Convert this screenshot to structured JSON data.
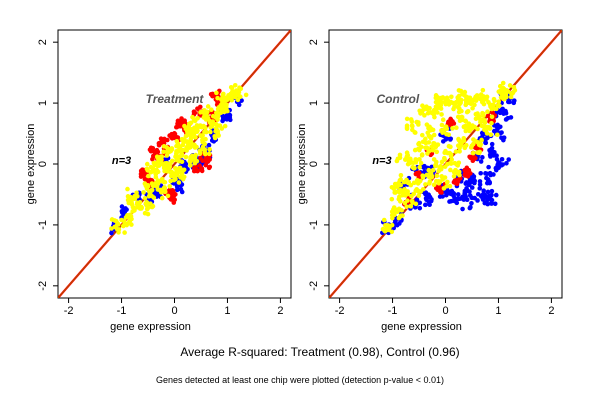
{
  "chart_data": [
    {
      "type": "scatter",
      "panel_label": "Treatment",
      "n_label": "n=3",
      "xlabel": "gene expression",
      "ylabel": "gene expression",
      "xlim": [
        -2.2,
        2.2
      ],
      "ylim": [
        -2.2,
        2.2
      ],
      "xticks": [
        -2,
        -1,
        0,
        1,
        2
      ],
      "yticks": [
        -2,
        -1,
        0,
        1,
        2
      ],
      "reference_line": {
        "slope": 1,
        "intercept": 0,
        "colors": [
          "#ff0000",
          "#996600"
        ]
      },
      "series": [
        {
          "color": "#0000ff",
          "spread": 0.1,
          "points": [
            [
              -1.15,
              -1.05
            ],
            [
              -0.95,
              -0.8
            ],
            [
              -0.7,
              -0.55
            ],
            [
              -0.5,
              -0.6
            ],
            [
              -0.3,
              -0.45
            ],
            [
              0.0,
              -0.25
            ],
            [
              0.2,
              -0.05
            ],
            [
              0.35,
              0.05
            ],
            [
              0.55,
              0.25
            ],
            [
              0.75,
              0.5
            ],
            [
              0.95,
              0.8
            ],
            [
              1.2,
              1.05
            ],
            [
              0.6,
              0.15
            ],
            [
              -0.2,
              0.05
            ],
            [
              0.1,
              -0.35
            ],
            [
              0.5,
              0.0
            ]
          ]
        },
        {
          "color": "#ff0000",
          "spread": 0.1,
          "points": [
            [
              -0.5,
              -0.3
            ],
            [
              -0.3,
              0.1
            ],
            [
              -0.2,
              0.35
            ],
            [
              0.0,
              0.45
            ],
            [
              0.2,
              0.6
            ],
            [
              0.45,
              0.85
            ],
            [
              0.8,
              1.1
            ],
            [
              0.9,
              0.95
            ],
            [
              0.45,
              -0.1
            ],
            [
              0.6,
              0.05
            ],
            [
              -0.1,
              -0.45
            ],
            [
              -0.05,
              -0.55
            ],
            [
              -0.4,
              0.2
            ],
            [
              0.1,
              0.65
            ],
            [
              0.7,
              0.75
            ],
            [
              -0.6,
              -0.15
            ]
          ]
        },
        {
          "color": "#ffff00",
          "spread": 0.14,
          "points": [
            [
              -1.1,
              -1.05
            ],
            [
              -0.9,
              -0.9
            ],
            [
              -0.7,
              -0.7
            ],
            [
              -0.5,
              -0.45
            ],
            [
              -0.3,
              -0.3
            ],
            [
              -0.1,
              -0.05
            ],
            [
              0.1,
              0.1
            ],
            [
              0.3,
              0.3
            ],
            [
              0.5,
              0.5
            ],
            [
              0.7,
              0.7
            ],
            [
              0.9,
              0.9
            ],
            [
              1.1,
              1.1
            ],
            [
              1.2,
              1.2
            ],
            [
              -0.4,
              -0.1
            ],
            [
              -0.2,
              0.15
            ],
            [
              0.0,
              0.25
            ],
            [
              0.2,
              0.4
            ],
            [
              0.4,
              0.65
            ],
            [
              0.6,
              0.85
            ],
            [
              -0.5,
              -0.7
            ],
            [
              -0.2,
              -0.4
            ],
            [
              0.1,
              -0.15
            ],
            [
              0.35,
              0.05
            ],
            [
              0.55,
              0.25
            ],
            [
              0.8,
              0.55
            ],
            [
              -0.3,
              0.0
            ],
            [
              0.0,
              -0.2
            ],
            [
              0.3,
              0.55
            ],
            [
              -0.8,
              -0.55
            ],
            [
              0.95,
              1.05
            ]
          ]
        }
      ]
    },
    {
      "type": "scatter",
      "panel_label": "Control",
      "n_label": "n=3",
      "xlabel": "gene expression",
      "ylabel": "gene expression",
      "xlim": [
        -2.2,
        2.2
      ],
      "ylim": [
        -2.2,
        2.2
      ],
      "xticks": [
        -2,
        -1,
        0,
        1,
        2
      ],
      "yticks": [
        -2,
        -1,
        0,
        1,
        2
      ],
      "reference_line": {
        "slope": 1,
        "intercept": 0,
        "colors": [
          "#ff0000",
          "#996600"
        ]
      },
      "series": [
        {
          "color": "#0000ff",
          "spread": 0.14,
          "points": [
            [
              -1.1,
              -1.05
            ],
            [
              -0.9,
              -0.95
            ],
            [
              -0.6,
              -0.65
            ],
            [
              -0.3,
              -0.55
            ],
            [
              0.0,
              -0.45
            ],
            [
              0.2,
              -0.55
            ],
            [
              0.4,
              -0.6
            ],
            [
              0.5,
              -0.3
            ],
            [
              0.7,
              -0.5
            ],
            [
              0.8,
              -0.2
            ],
            [
              0.9,
              0.2
            ],
            [
              1.0,
              0.5
            ],
            [
              1.1,
              0.85
            ],
            [
              0.6,
              0.15
            ],
            [
              0.3,
              -0.25
            ],
            [
              0.85,
              -0.55
            ],
            [
              1.05,
              0.05
            ],
            [
              -0.5,
              -0.1
            ],
            [
              -0.8,
              -0.3
            ],
            [
              0.0,
              0.5
            ],
            [
              0.7,
              0.45
            ],
            [
              0.45,
              -0.4
            ],
            [
              -0.3,
              -0.15
            ],
            [
              1.2,
              1.1
            ]
          ]
        },
        {
          "color": "#ff0000",
          "spread": 0.08,
          "points": [
            [
              -0.5,
              -0.2
            ],
            [
              -0.3,
              0.2
            ],
            [
              0.2,
              -0.3
            ],
            [
              0.4,
              -0.15
            ],
            [
              0.6,
              0.3
            ],
            [
              0.85,
              0.75
            ],
            [
              -0.7,
              -0.6
            ],
            [
              0.1,
              0.7
            ],
            [
              -0.1,
              -0.4
            ],
            [
              0.5,
              0.1
            ]
          ]
        },
        {
          "color": "#ffff00",
          "spread": 0.15,
          "points": [
            [
              -1.1,
              -1.05
            ],
            [
              -0.9,
              -0.85
            ],
            [
              -0.7,
              -0.6
            ],
            [
              -0.5,
              -0.4
            ],
            [
              -0.3,
              -0.2
            ],
            [
              -0.1,
              0.0
            ],
            [
              0.1,
              0.15
            ],
            [
              0.3,
              0.35
            ],
            [
              0.5,
              0.55
            ],
            [
              0.7,
              0.75
            ],
            [
              0.9,
              0.95
            ],
            [
              1.1,
              1.15
            ],
            [
              1.2,
              1.2
            ],
            [
              -0.8,
              -0.3
            ],
            [
              -0.6,
              0.0
            ],
            [
              -0.45,
              0.25
            ],
            [
              -0.3,
              0.55
            ],
            [
              -0.2,
              0.85
            ],
            [
              -0.1,
              1.0
            ],
            [
              0.0,
              1.05
            ],
            [
              0.2,
              0.95
            ],
            [
              0.35,
              1.1
            ],
            [
              0.5,
              1.05
            ],
            [
              0.7,
              1.1
            ],
            [
              -0.4,
              0.9
            ],
            [
              -0.6,
              0.65
            ],
            [
              -0.8,
              0.1
            ],
            [
              -0.9,
              -0.5
            ],
            [
              0.0,
              0.55
            ],
            [
              0.3,
              0.75
            ],
            [
              -0.2,
              0.3
            ],
            [
              0.6,
              0.3
            ],
            [
              0.8,
              0.6
            ],
            [
              0.2,
              -0.1
            ],
            [
              -0.05,
              -0.3
            ]
          ]
        }
      ]
    }
  ],
  "caption": "Average R-squared: Treatment (0.98), Control (0.96)",
  "footnote": "Genes detected at least one chip were plotted (detection p-value < 0.01)"
}
